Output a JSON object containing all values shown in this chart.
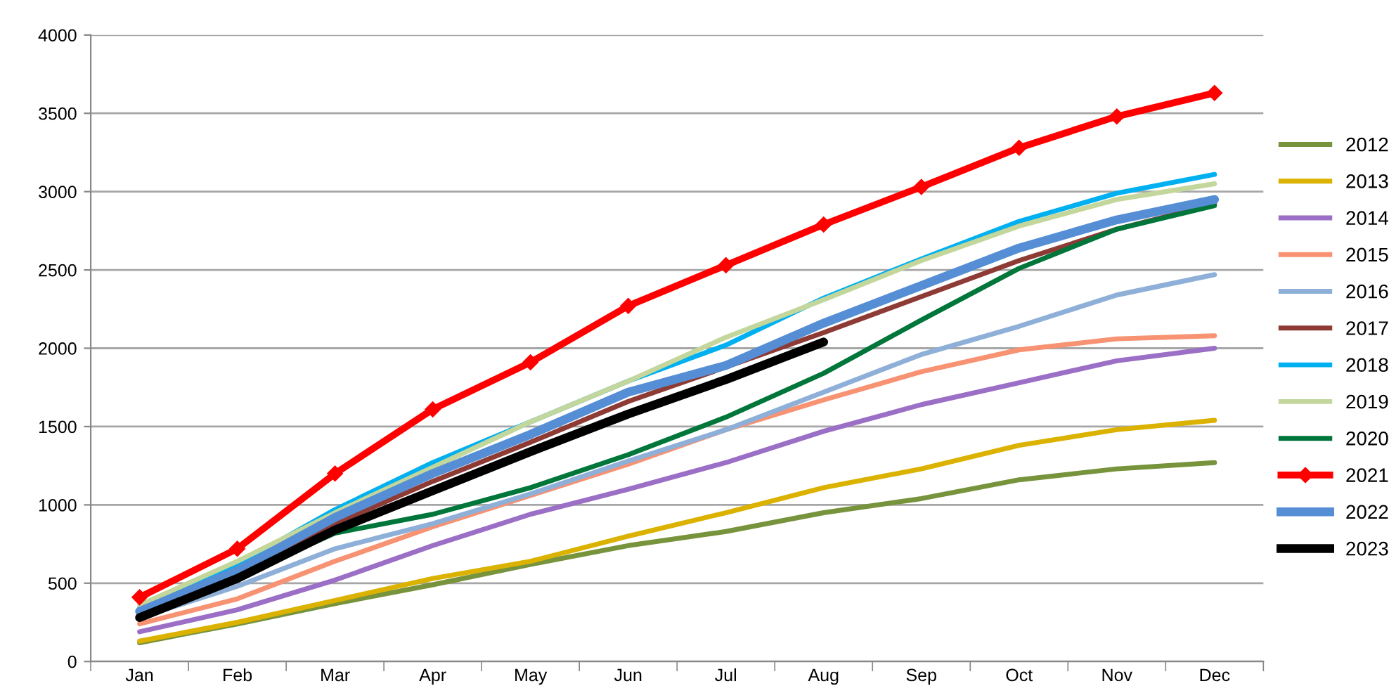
{
  "chart_data": {
    "type": "line",
    "categories": [
      "Jan",
      "Feb",
      "Mar",
      "Apr",
      "May",
      "Jun",
      "Jul",
      "Aug",
      "Sep",
      "Oct",
      "Nov",
      "Dec"
    ],
    "ylim": [
      0,
      4000
    ],
    "yticks": [
      0,
      500,
      1000,
      1500,
      2000,
      2500,
      3000,
      3500,
      4000
    ],
    "grid": "y",
    "legend": "right",
    "marker": "none",
    "series": [
      {
        "name": "2012",
        "color": "#77933c",
        "values": [
          120,
          240,
          370,
          490,
          620,
          740,
          830,
          950,
          1040,
          1160,
          1230,
          1270
        ]
      },
      {
        "name": "2013",
        "color": "#dbb200",
        "values": [
          130,
          250,
          390,
          530,
          640,
          800,
          950,
          1110,
          1230,
          1380,
          1480,
          1540
        ]
      },
      {
        "name": "2014",
        "color": "#9b6fc6",
        "values": [
          190,
          330,
          520,
          740,
          940,
          1100,
          1270,
          1470,
          1640,
          1780,
          1920,
          2000
        ]
      },
      {
        "name": "2015",
        "color": "#f79273",
        "values": [
          240,
          400,
          640,
          860,
          1060,
          1260,
          1480,
          1670,
          1850,
          1990,
          2060,
          2080
        ]
      },
      {
        "name": "2016",
        "color": "#8eb0d8",
        "values": [
          280,
          480,
          720,
          880,
          1070,
          1280,
          1480,
          1720,
          1960,
          2140,
          2340,
          2470
        ]
      },
      {
        "name": "2017",
        "color": "#8e3a35",
        "values": [
          300,
          560,
          880,
          1150,
          1400,
          1660,
          1880,
          2100,
          2330,
          2560,
          2760,
          2920
        ]
      },
      {
        "name": "2018",
        "color": "#00b0f0",
        "values": [
          340,
          620,
          970,
          1270,
          1530,
          1790,
          2020,
          2320,
          2570,
          2810,
          2990,
          3110
        ]
      },
      {
        "name": "2019",
        "color": "#c3d69b",
        "values": [
          360,
          640,
          950,
          1240,
          1530,
          1790,
          2070,
          2310,
          2560,
          2780,
          2950,
          3050
        ]
      },
      {
        "name": "2020",
        "color": "#00763a",
        "values": [
          320,
          540,
          820,
          940,
          1110,
          1320,
          1560,
          1840,
          2180,
          2510,
          2760,
          2910
        ]
      },
      {
        "name": "2021",
        "color": "#ff0000",
        "marker": "diamond",
        "values": [
          410,
          720,
          1200,
          1610,
          1910,
          2270,
          2530,
          2790,
          3030,
          3280,
          3480,
          3630
        ]
      },
      {
        "name": "2022",
        "color": "#558ed5",
        "values": [
          320,
          580,
          920,
          1200,
          1450,
          1720,
          1890,
          2160,
          2400,
          2640,
          2820,
          2950
        ]
      },
      {
        "name": "2023",
        "color": "#000000",
        "values": [
          280,
          530,
          840,
          1090,
          1340,
          1580,
          1800,
          2040,
          null,
          null,
          null,
          null
        ]
      }
    ]
  }
}
